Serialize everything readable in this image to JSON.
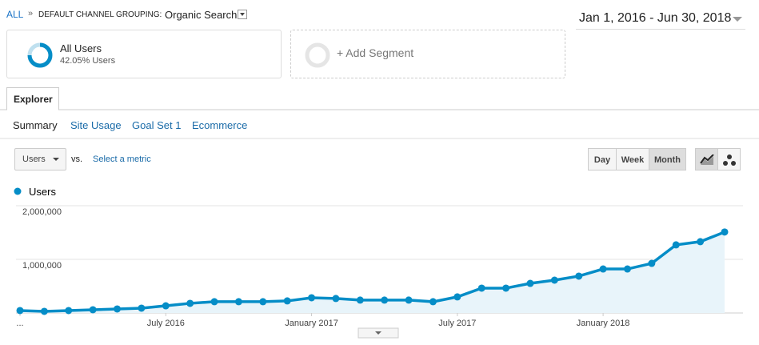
{
  "header": {
    "root": "ALL",
    "separator": "»",
    "dimension": "DEFAULT CHANNEL GROUPING:",
    "value": "Organic Search",
    "date_range": "Jan 1, 2016 - Jun 30, 2018"
  },
  "segments": [
    {
      "name": "All Users",
      "detail": "42.05% Users"
    },
    {
      "name": "+ Add Segment"
    }
  ],
  "tabs": [
    "Explorer"
  ],
  "subtabs": [
    "Summary",
    "Site Usage",
    "Goal Set 1",
    "Ecommerce"
  ],
  "controls": {
    "metric": "Users",
    "vs": "vs.",
    "select_metric": "Select a metric",
    "intervals": [
      "Day",
      "Week",
      "Month"
    ]
  },
  "chart_data": {
    "type": "line",
    "categories": [
      "...",
      null,
      null,
      null,
      null,
      null,
      "July 2016",
      null,
      null,
      null,
      null,
      null,
      "January 2017",
      null,
      null,
      null,
      null,
      null,
      "July 2017",
      null,
      null,
      null,
      null,
      null,
      "January 2018",
      null,
      null,
      null,
      null,
      null
    ],
    "series": [
      {
        "name": "Users",
        "color": "#058dc7",
        "values": [
          45000,
          30000,
          45000,
          60000,
          75000,
          90000,
          134000,
          180000,
          210000,
          210000,
          210000,
          225000,
          284000,
          270000,
          240000,
          240000,
          240000,
          210000,
          300000,
          463000,
          463000,
          552000,
          612000,
          687000,
          820000,
          820000,
          925000,
          1270000,
          1330000,
          1510000
        ]
      }
    ],
    "ylim": [
      0,
      2000000
    ],
    "yticks": [
      {
        "value": 1000000,
        "label": "1,000,000"
      },
      {
        "value": 2000000,
        "label": "2,000,000"
      }
    ],
    "grid": true
  }
}
